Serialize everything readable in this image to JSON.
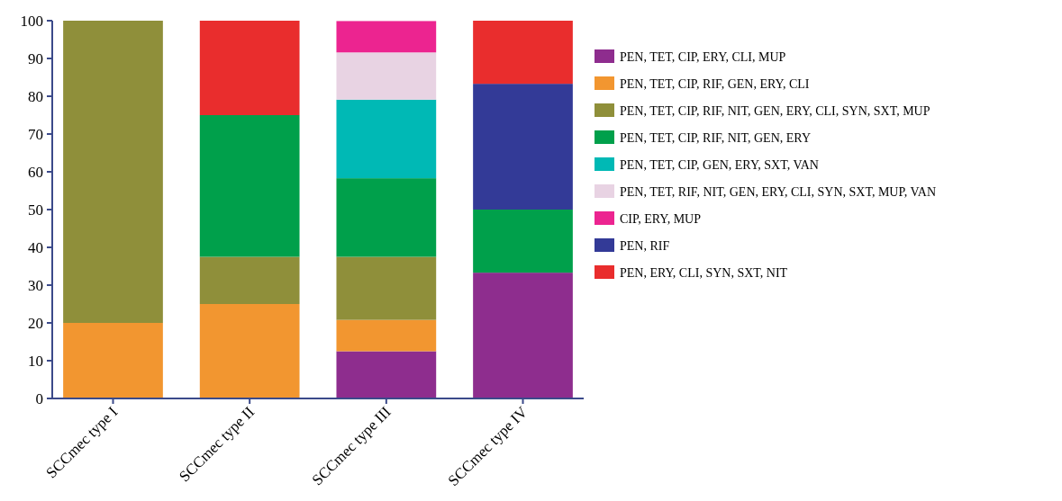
{
  "chart_data": {
    "type": "bar",
    "stacked": true,
    "categories": [
      "SCCmec type I",
      "SCCmec type II",
      "SCCmec type III",
      "SCCmec type IV"
    ],
    "ylim": [
      0,
      100
    ],
    "yticks": [
      0,
      10,
      20,
      30,
      40,
      50,
      60,
      70,
      80,
      90,
      100
    ],
    "grid": false,
    "legend": "right",
    "series": [
      {
        "name": "PEN, TET, CIP, ERY, CLI, MUP",
        "color": "#8e2d8e",
        "values": [
          null,
          null,
          12.5,
          33.3
        ]
      },
      {
        "name": "PEN, TET, CIP, RIF, GEN, ERY, CLI",
        "color": "#f29630",
        "values": [
          20,
          25,
          8.3,
          null
        ]
      },
      {
        "name": "PEN, TET, CIP, RIF, NIT, GEN, ERY, CLI, SYN, SXT, MUP",
        "color": "#8f8f3a",
        "values": [
          80,
          12.5,
          16.7,
          null
        ]
      },
      {
        "name": "PEN, TET, CIP, RIF, NIT, GEN, ERY",
        "color": "#00a04b",
        "values": [
          null,
          37.5,
          20.8,
          16.7
        ]
      },
      {
        "name": "PEN, TET, CIP, GEN, ERY, SXT, VAN",
        "color": "#00b9b5",
        "values": [
          null,
          null,
          20.8,
          null
        ]
      },
      {
        "name": "PEN, TET, RIF, NIT, GEN, ERY, CLI, SYN, SXT, MUP, VAN",
        "color": "#e8d3e3",
        "values": [
          null,
          null,
          12.5,
          null
        ]
      },
      {
        "name": "CIP, ERY, MUP",
        "color": "#ec2490",
        "values": [
          null,
          null,
          8.3,
          null
        ]
      },
      {
        "name": "PEN, RIF",
        "color": "#333a97",
        "values": [
          null,
          null,
          null,
          33.3
        ]
      },
      {
        "name": "PEN, ERY, CLI, SYN, SXT, NIT",
        "color": "#e92d2d",
        "values": [
          null,
          25,
          null,
          16.7
        ]
      }
    ]
  }
}
